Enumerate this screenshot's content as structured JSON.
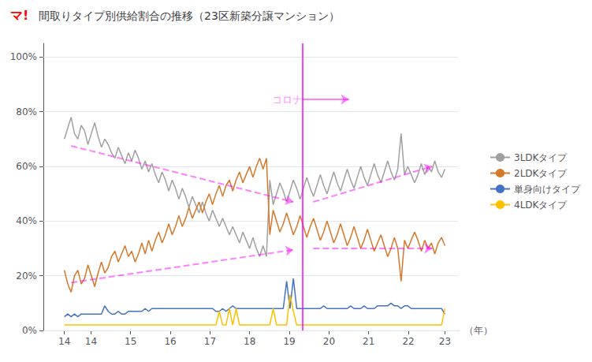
{
  "chart_data": {
    "type": "line",
    "title": "間取りタイプ別供給割合の推移（23区新築分譲マンション）",
    "logo": {
      "text": "マ!",
      "color": "#ff0000"
    },
    "xlabel": "（年）",
    "x": [
      13.83,
      13.9149,
      13.9997,
      14.0846,
      14.1695,
      14.2543,
      14.3392,
      14.4241,
      14.5089,
      14.5938,
      14.6787,
      14.7635,
      14.8484,
      14.9333,
      15.0181,
      15.103,
      15.1879,
      15.2727,
      15.3576,
      15.4425,
      15.5273,
      15.6122,
      15.6971,
      15.7819,
      15.8668,
      15.9517,
      16.0365,
      16.1214,
      16.2063,
      16.2912,
      16.376,
      16.4609,
      16.5458,
      16.6306,
      16.7155,
      16.8004,
      16.8852,
      16.9701,
      17.055,
      17.1398,
      17.2247,
      17.3096,
      17.3944,
      17.4793,
      17.5642,
      17.649,
      17.7339,
      17.8188,
      17.9036,
      17.9885,
      18.0734,
      18.1582,
      18.2431,
      18.328,
      18.4128,
      18.4977,
      18.5826,
      18.6674,
      18.7523,
      18.8372,
      18.922,
      19.0069,
      19.0918,
      19.1766,
      19.2615,
      19.3464,
      19.4312,
      19.5161,
      19.601,
      19.6858,
      19.7707,
      19.8556,
      19.9404,
      20.0253,
      20.1102,
      20.195,
      20.2799,
      20.3648,
      20.4496,
      20.5345,
      20.6194,
      20.7042,
      20.7891,
      20.874,
      20.9588,
      21.0437,
      21.1286,
      21.2135,
      21.2983,
      21.3832,
      21.4681,
      21.5529,
      21.6378,
      21.7227,
      21.8075,
      21.8924,
      21.9773,
      22.0621,
      22.147,
      22.2319,
      22.3167,
      22.4016,
      22.4865,
      22.5713,
      22.6562,
      22.7411,
      22.8259,
      22.9108,
      22.9957,
      23.0805,
      23.1654,
      23.2503,
      23.3351,
      23.42
    ],
    "series": [
      {
        "name": "3LDKタイプ",
        "color": "#a0a0a0",
        "values": [
          0.7,
          0.74,
          0.78,
          0.72,
          0.7,
          0.75,
          0.73,
          0.68,
          0.72,
          0.76,
          0.71,
          0.67,
          0.7,
          0.68,
          0.65,
          0.63,
          0.67,
          0.64,
          0.61,
          0.65,
          0.62,
          0.66,
          0.63,
          0.59,
          0.62,
          0.58,
          0.61,
          0.57,
          0.54,
          0.58,
          0.55,
          0.51,
          0.55,
          0.52,
          0.48,
          0.52,
          0.49,
          0.45,
          0.49,
          0.46,
          0.43,
          0.47,
          0.43,
          0.4,
          0.44,
          0.41,
          0.38,
          0.41,
          0.38,
          0.35,
          0.38,
          0.35,
          0.32,
          0.36,
          0.33,
          0.3,
          0.34,
          0.3,
          0.27,
          0.31,
          0.27,
          0.55,
          0.46,
          0.5,
          0.54,
          0.51,
          0.47,
          0.51,
          0.55,
          0.52,
          0.48,
          0.52,
          0.56,
          0.52,
          0.49,
          0.53,
          0.57,
          0.53,
          0.5,
          0.54,
          0.58,
          0.54,
          0.51,
          0.55,
          0.59,
          0.55,
          0.52,
          0.56,
          0.6,
          0.56,
          0.53,
          0.57,
          0.61,
          0.57,
          0.54,
          0.58,
          0.62,
          0.58,
          0.55,
          0.59,
          0.72,
          0.57,
          0.6,
          0.57,
          0.54,
          0.57,
          0.61,
          0.57,
          0.6,
          0.58,
          0.62,
          0.58,
          0.56,
          0.59
        ]
      },
      {
        "name": "2LDKタイプ",
        "color": "#d4782a",
        "values": [
          0.22,
          0.17,
          0.14,
          0.2,
          0.22,
          0.17,
          0.19,
          0.24,
          0.2,
          0.16,
          0.21,
          0.25,
          0.21,
          0.23,
          0.27,
          0.29,
          0.25,
          0.28,
          0.31,
          0.27,
          0.29,
          0.25,
          0.28,
          0.32,
          0.28,
          0.33,
          0.29,
          0.33,
          0.36,
          0.32,
          0.35,
          0.39,
          0.35,
          0.38,
          0.42,
          0.38,
          0.41,
          0.45,
          0.41,
          0.44,
          0.47,
          0.43,
          0.47,
          0.5,
          0.46,
          0.5,
          0.53,
          0.49,
          0.53,
          0.55,
          0.51,
          0.55,
          0.58,
          0.54,
          0.57,
          0.6,
          0.56,
          0.6,
          0.63,
          0.59,
          0.63,
          0.35,
          0.44,
          0.4,
          0.36,
          0.39,
          0.43,
          0.39,
          0.35,
          0.38,
          0.42,
          0.38,
          0.34,
          0.38,
          0.41,
          0.37,
          0.33,
          0.36,
          0.4,
          0.36,
          0.32,
          0.35,
          0.39,
          0.35,
          0.31,
          0.34,
          0.38,
          0.34,
          0.3,
          0.33,
          0.37,
          0.33,
          0.29,
          0.32,
          0.35,
          0.31,
          0.27,
          0.3,
          0.34,
          0.3,
          0.18,
          0.33,
          0.3,
          0.33,
          0.36,
          0.33,
          0.29,
          0.33,
          0.3,
          0.32,
          0.28,
          0.32,
          0.34,
          0.31
        ]
      },
      {
        "name": "単身向けタイプ",
        "color": "#4472c4",
        "values": [
          0.05,
          0.06,
          0.05,
          0.06,
          0.05,
          0.06,
          0.06,
          0.06,
          0.06,
          0.06,
          0.06,
          0.06,
          0.09,
          0.07,
          0.06,
          0.06,
          0.07,
          0.06,
          0.06,
          0.07,
          0.07,
          0.07,
          0.07,
          0.07,
          0.08,
          0.07,
          0.08,
          0.08,
          0.08,
          0.08,
          0.08,
          0.08,
          0.08,
          0.08,
          0.08,
          0.08,
          0.08,
          0.08,
          0.08,
          0.08,
          0.08,
          0.08,
          0.08,
          0.08,
          0.08,
          0.07,
          0.07,
          0.08,
          0.07,
          0.08,
          0.09,
          0.08,
          0.08,
          0.08,
          0.08,
          0.08,
          0.08,
          0.08,
          0.08,
          0.08,
          0.08,
          0.08,
          0.08,
          0.08,
          0.08,
          0.08,
          0.18,
          0.08,
          0.19,
          0.08,
          0.08,
          0.08,
          0.08,
          0.08,
          0.08,
          0.08,
          0.08,
          0.09,
          0.08,
          0.08,
          0.08,
          0.08,
          0.08,
          0.08,
          0.08,
          0.09,
          0.08,
          0.08,
          0.08,
          0.09,
          0.08,
          0.08,
          0.08,
          0.09,
          0.09,
          0.09,
          0.09,
          0.1,
          0.09,
          0.09,
          0.08,
          0.09,
          0.09,
          0.08,
          0.08,
          0.08,
          0.08,
          0.08,
          0.08,
          0.08,
          0.08,
          0.08,
          0.08,
          0.06
        ]
      },
      {
        "name": "4LDKタイプ",
        "color": "#ffc000",
        "values": [
          0.02,
          0.02,
          0.02,
          0.02,
          0.02,
          0.02,
          0.02,
          0.02,
          0.02,
          0.02,
          0.02,
          0.02,
          0.02,
          0.02,
          0.02,
          0.02,
          0.02,
          0.02,
          0.02,
          0.02,
          0.02,
          0.02,
          0.02,
          0.02,
          0.02,
          0.02,
          0.02,
          0.02,
          0.02,
          0.02,
          0.02,
          0.02,
          0.02,
          0.02,
          0.02,
          0.02,
          0.02,
          0.02,
          0.02,
          0.02,
          0.02,
          0.02,
          0.02,
          0.02,
          0.02,
          0.02,
          0.07,
          0.02,
          0.02,
          0.08,
          0.02,
          0.08,
          0.02,
          0.02,
          0.02,
          0.02,
          0.02,
          0.02,
          0.02,
          0.02,
          0.02,
          0.02,
          0.08,
          0.02,
          0.02,
          0.02,
          0.02,
          0.13,
          0.07,
          0.02,
          0.02,
          0.02,
          0.02,
          0.02,
          0.02,
          0.02,
          0.02,
          0.02,
          0.02,
          0.02,
          0.02,
          0.02,
          0.02,
          0.02,
          0.02,
          0.02,
          0.02,
          0.02,
          0.02,
          0.02,
          0.02,
          0.02,
          0.02,
          0.02,
          0.02,
          0.02,
          0.02,
          0.02,
          0.02,
          0.02,
          0.02,
          0.02,
          0.02,
          0.02,
          0.02,
          0.02,
          0.02,
          0.02,
          0.02,
          0.02,
          0.02,
          0.02,
          0.02,
          0.08
        ]
      }
    ],
    "vlines": [
      {
        "x": 19.83,
        "color": "#ff00ff"
      }
    ],
    "arrows": [
      {
        "from": [
          14.0,
          0.675
        ],
        "to": [
          19.6,
          0.47
        ],
        "color": "#ff00ff",
        "line_style": "dashed"
      },
      {
        "from": [
          20.1,
          0.47
        ],
        "to": [
          23.1,
          0.6
        ],
        "color": "#ff00ff",
        "line_style": "dashed"
      },
      {
        "from": [
          14.0,
          0.175
        ],
        "to": [
          19.6,
          0.295
        ],
        "color": "#ff00ff",
        "line_style": "dashed"
      },
      {
        "from": [
          20.1,
          0.3
        ],
        "to": [
          23.1,
          0.3
        ],
        "color": "#ff00ff",
        "line_style": "dashed"
      },
      {
        "from": [
          19.83,
          0.845
        ],
        "to": [
          21.0,
          0.845
        ],
        "color": "#ff00ff",
        "line_style": "solid",
        "label": "コロナ"
      }
    ],
    "xlim": [
      13.3,
      23.75
    ],
    "xticks": [
      {
        "value": 13.83,
        "label": "14"
      },
      {
        "value": 14.5,
        "label": "14"
      },
      {
        "value": 15.5,
        "label": "15"
      },
      {
        "value": 16.5,
        "label": "16"
      },
      {
        "value": 17.5,
        "label": "17"
      },
      {
        "value": 18.5,
        "label": "18"
      },
      {
        "value": 19.5,
        "label": "19"
      },
      {
        "value": 20.5,
        "label": "20"
      },
      {
        "value": 21.5,
        "label": "21"
      },
      {
        "value": 22.5,
        "label": "22"
      },
      {
        "value": 23.42,
        "label": "23"
      }
    ],
    "ylim": [
      0,
      1.05
    ],
    "yticks": [
      {
        "value": 0,
        "label": "0%"
      },
      {
        "value": 0.2,
        "label": "20%"
      },
      {
        "value": 0.4,
        "label": "40%"
      },
      {
        "value": 0.6,
        "label": "60%"
      },
      {
        "value": 0.8,
        "label": "80%"
      },
      {
        "value": 1.0,
        "label": "100%"
      }
    ],
    "grid": true,
    "legend": "right"
  }
}
